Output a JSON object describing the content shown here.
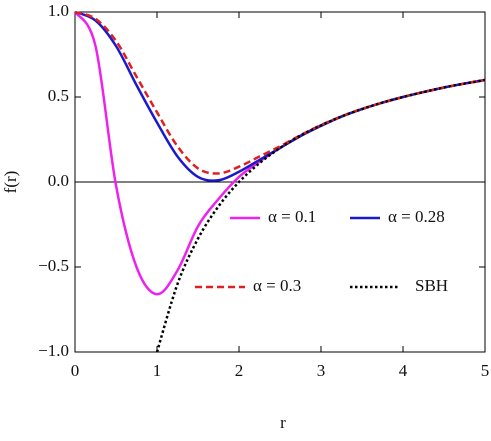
{
  "chart_data": {
    "type": "line",
    "x_label": "r",
    "y_label": "f(r)",
    "x": [
      0,
      0.25,
      0.5,
      0.75,
      1,
      1.25,
      1.5,
      1.75,
      2,
      2.25,
      2.5,
      2.75,
      3,
      3.25,
      3.5,
      3.75,
      4,
      4.25,
      4.5,
      4.75,
      5
    ],
    "series": [
      {
        "name": "α = 0.1",
        "color": "#ee22ee",
        "dash": "solid",
        "values": [
          1,
          0.8,
          -0.02,
          -0.5,
          -0.66,
          -0.52,
          -0.26,
          -0.1,
          0.03,
          0.12,
          0.2,
          0.273,
          0.333,
          0.385,
          0.429,
          0.467,
          0.5,
          0.529,
          0.556,
          0.579,
          0.6
        ]
      },
      {
        "name": "α = 0.28",
        "color": "#1a1acc",
        "dash": "solid",
        "values": [
          1,
          0.95,
          0.8,
          0.57,
          0.35,
          0.15,
          0.03,
          0.01,
          0.06,
          0.13,
          0.2,
          0.27,
          0.33,
          0.385,
          0.429,
          0.467,
          0.5,
          0.529,
          0.556,
          0.579,
          0.6
        ]
      },
      {
        "name": "α = 0.3",
        "color": "#e02020",
        "dash": "dashed",
        "values": [
          1,
          0.96,
          0.83,
          0.62,
          0.41,
          0.21,
          0.08,
          0.05,
          0.09,
          0.15,
          0.21,
          0.275,
          0.335,
          0.386,
          0.43,
          0.467,
          0.5,
          0.529,
          0.556,
          0.579,
          0.6
        ]
      },
      {
        "name": "SBH",
        "color": "#000000",
        "dash": "dotted",
        "values": [
          null,
          null,
          null,
          null,
          -1,
          -0.6,
          -0.333,
          -0.143,
          0,
          0.111,
          0.2,
          0.273,
          0.333,
          0.385,
          0.429,
          0.467,
          0.5,
          0.529,
          0.556,
          0.579,
          0.6
        ]
      }
    ],
    "xlim": [
      0,
      5
    ],
    "xticks": [
      0,
      1,
      2,
      3,
      4,
      5
    ],
    "ylim": [
      -1,
      1
    ],
    "yticks": [
      {
        "value": -1,
        "label": "−1.0"
      },
      {
        "value": -0.5,
        "label": "−0.5"
      },
      {
        "value": 0,
        "label": "0.0"
      },
      0.5,
      {
        "value": 1,
        "label": "1.0"
      }
    ],
    "zero_line": true
  }
}
